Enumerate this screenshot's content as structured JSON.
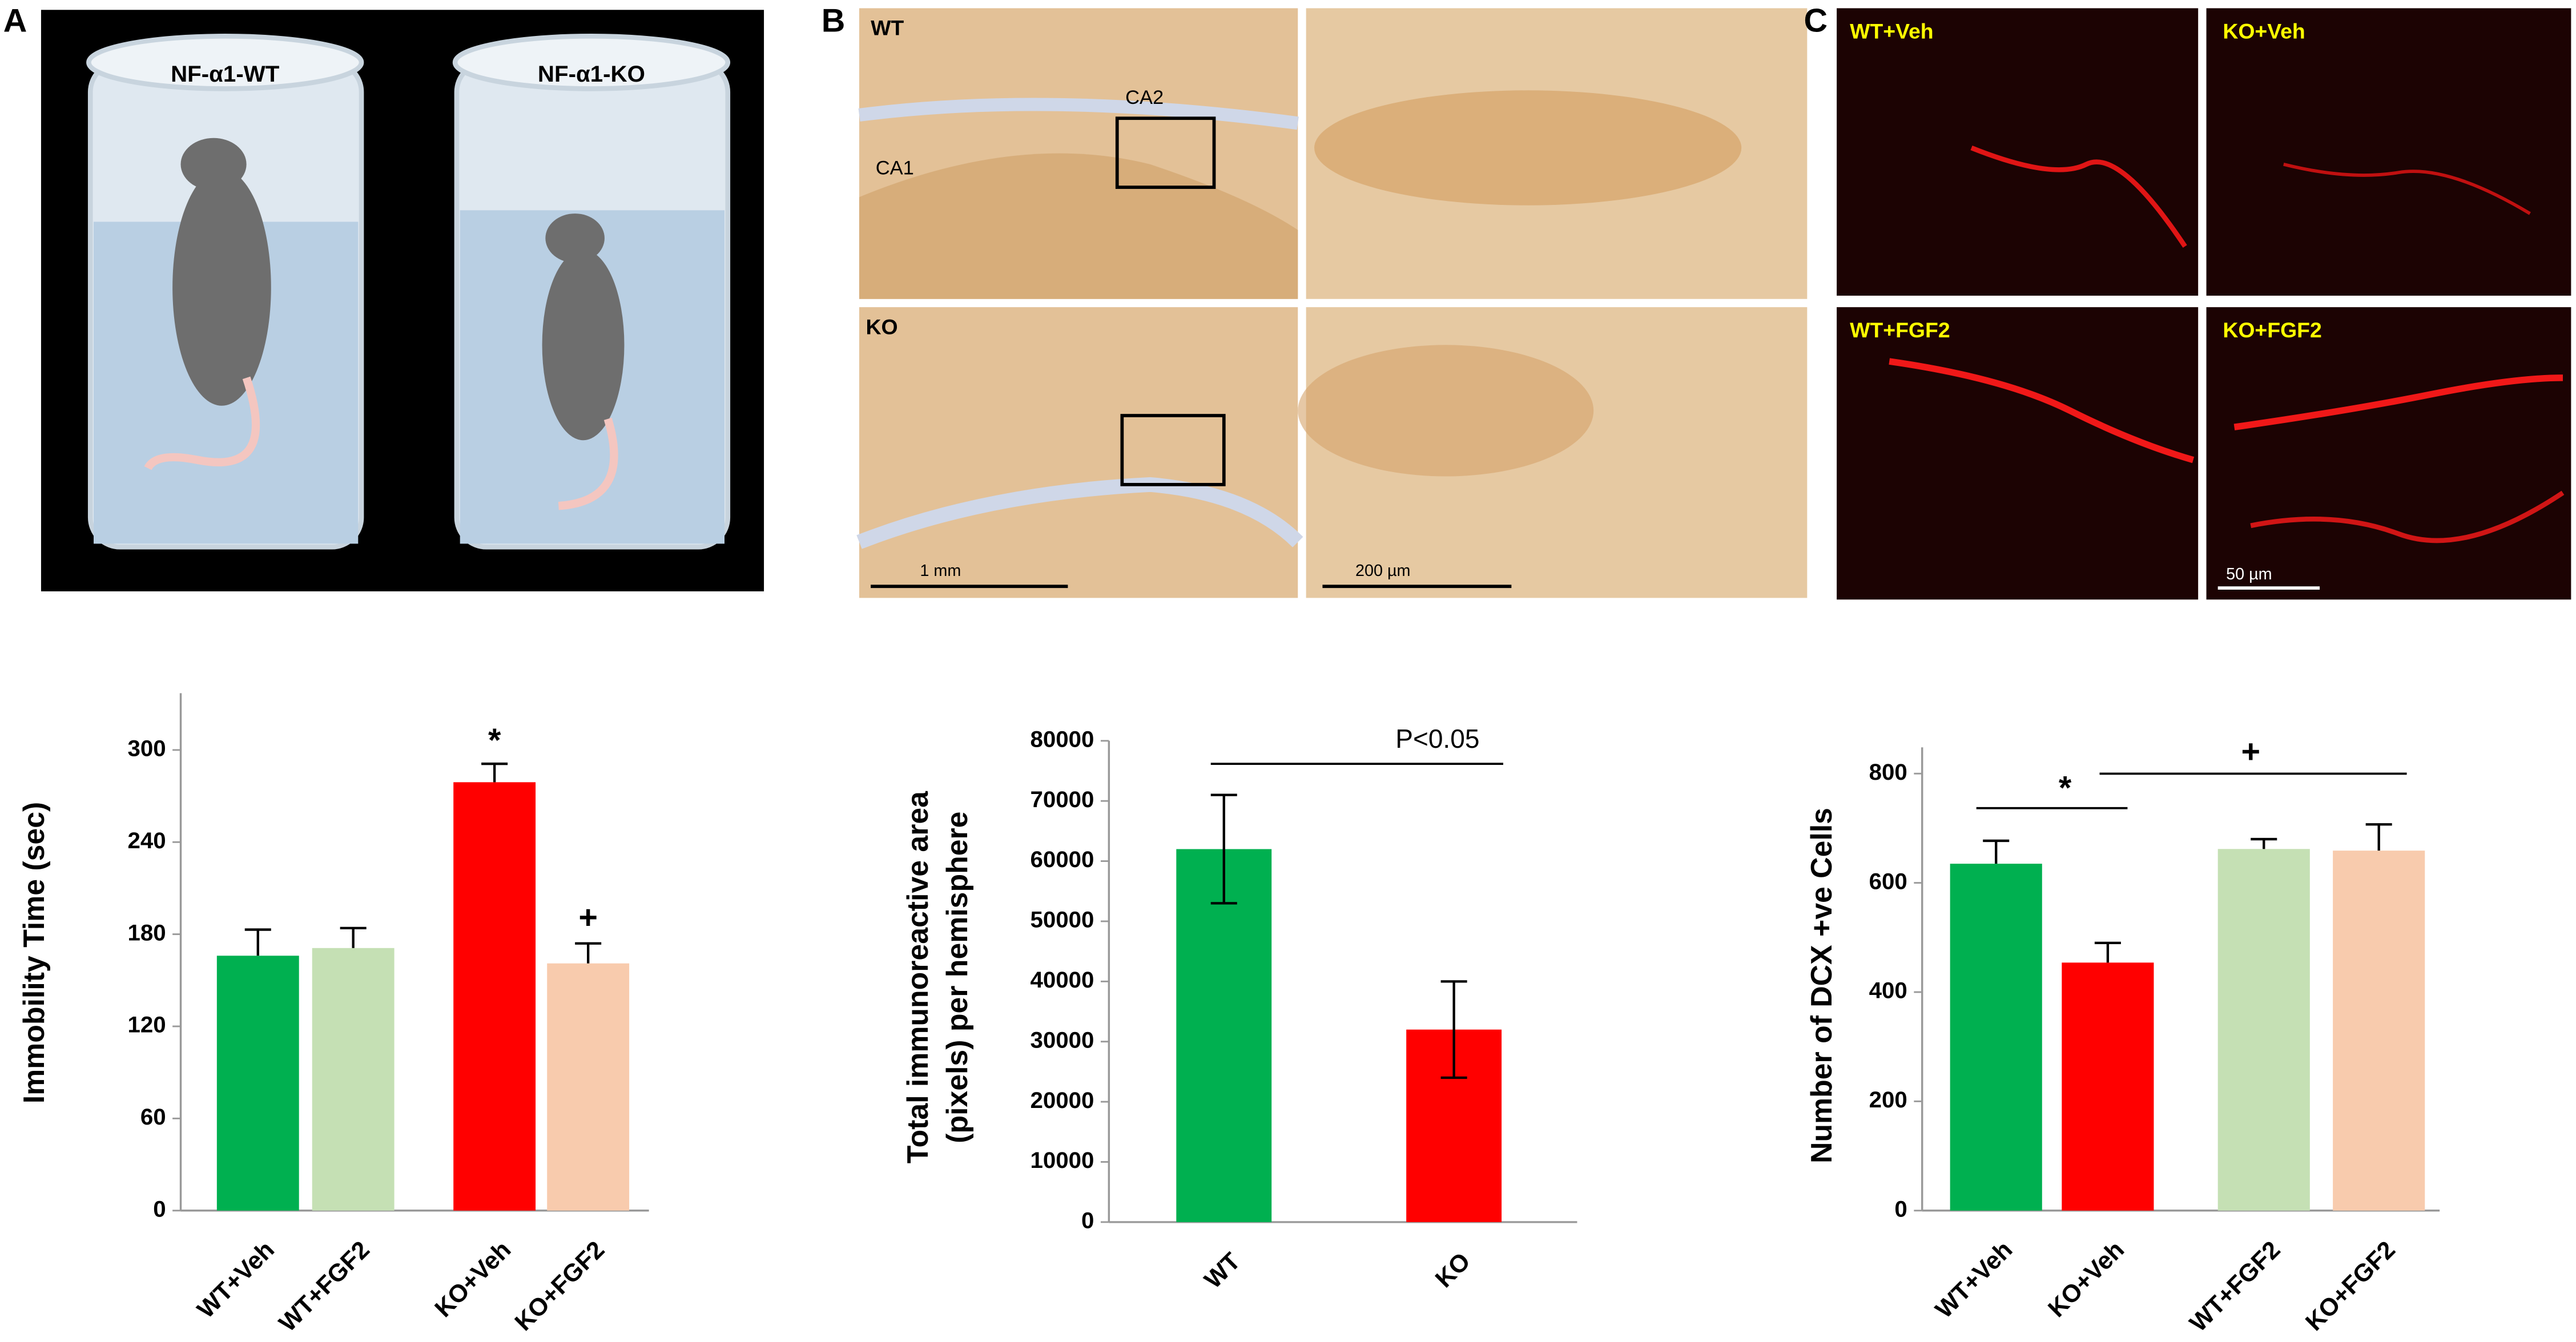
{
  "panels": {
    "a": {
      "letter": "A",
      "labels": [
        "NF-α1-WT",
        "NF-α1-KO"
      ]
    },
    "b": {
      "letter": "B",
      "labels": [
        "WT",
        "KO",
        "CA2",
        "CA1"
      ],
      "scales": [
        "1 mm",
        "200 µm"
      ]
    },
    "c": {
      "letter": "C",
      "labels": [
        "WT+Veh",
        "KO+Veh",
        "WT+FGF2",
        "KO+FGF2"
      ],
      "scale": "50 µm"
    }
  },
  "chart_data": [
    {
      "type": "bar",
      "y_label": "Immobility Time (sec)",
      "categories": [
        "WT+Veh",
        "WT+FGF2",
        "KO+Veh",
        "KO+FGF2"
      ],
      "values": [
        166,
        171,
        279,
        161
      ],
      "errors": [
        17,
        13,
        12,
        13
      ],
      "colors": [
        "#00b050",
        "#c5e0b4",
        "#ff0000",
        "#f8cbad"
      ],
      "ylim": [
        0,
        337
      ],
      "yticks": [
        0,
        60,
        120,
        180,
        240,
        300
      ],
      "annotations": [
        "*",
        "+"
      ]
    },
    {
      "type": "bar",
      "y_label": [
        "Total immunoreactive area",
        "(pixels) per hemisphere"
      ],
      "categories": [
        "WT",
        "KO"
      ],
      "values": [
        62000,
        32000
      ],
      "errors": [
        9000,
        8000
      ],
      "colors": [
        "#00b050",
        "#ff0000"
      ],
      "ylim": [
        0,
        80000
      ],
      "yticks": [
        0,
        10000,
        20000,
        30000,
        40000,
        50000,
        60000,
        70000,
        80000
      ],
      "annotations": [
        "P<0.05"
      ]
    },
    {
      "type": "bar",
      "y_label": "Number of DCX +ve Cells",
      "categories": [
        "WT+Veh",
        "KO+Veh",
        "WT+FGF2",
        "KO+FGF2"
      ],
      "values": [
        635,
        454,
        662,
        659
      ],
      "errors": [
        42,
        36,
        18,
        48
      ],
      "colors": [
        "#00b050",
        "#ff0000",
        "#c5e0b4",
        "#f8cbad"
      ],
      "ylim": [
        0,
        848
      ],
      "yticks": [
        0,
        200,
        400,
        600,
        800
      ],
      "annotations": [
        "*",
        "+"
      ]
    }
  ]
}
